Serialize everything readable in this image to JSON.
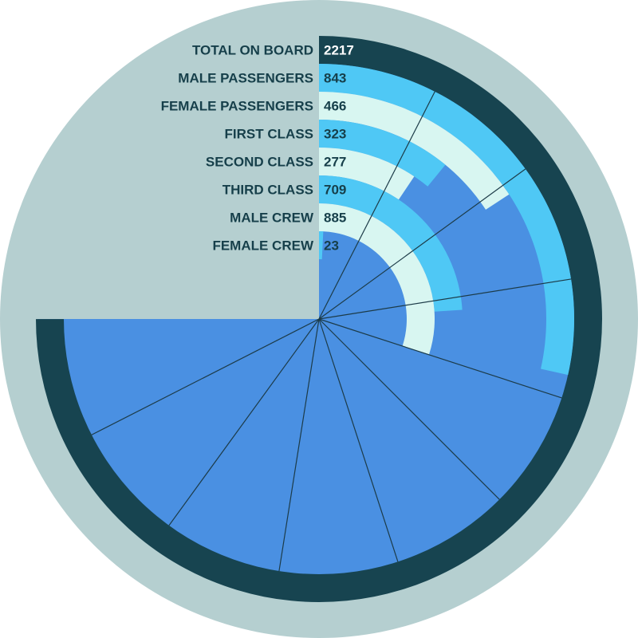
{
  "chart_data": {
    "type": "radial-bar",
    "angular_max": 2217,
    "series": [
      {
        "label": "TOTAL ON BOARD",
        "value": 2217
      },
      {
        "label": "MALE PASSENGERS",
        "value": 843
      },
      {
        "label": "FEMALE PASSENGERS",
        "value": 466
      },
      {
        "label": "FIRST CLASS",
        "value": 323
      },
      {
        "label": "SECOND CLASS",
        "value": 277
      },
      {
        "label": "THIRD CLASS",
        "value": 709
      },
      {
        "label": "MALE CREW",
        "value": 885
      },
      {
        "label": "FEMALE CREW",
        "value": 23
      }
    ],
    "colors": {
      "background_disc": "#b5cfd0",
      "total_ring": "#174450",
      "pie_fill": "#4a90e2",
      "ring_a": "#4fc8f5",
      "ring_b": "#d8f6f1",
      "divider": "#1c3b48",
      "label_text": "#163f4a",
      "value_text_on_light": "#163f4a",
      "value_text_on_dark": "#ffffff"
    }
  }
}
